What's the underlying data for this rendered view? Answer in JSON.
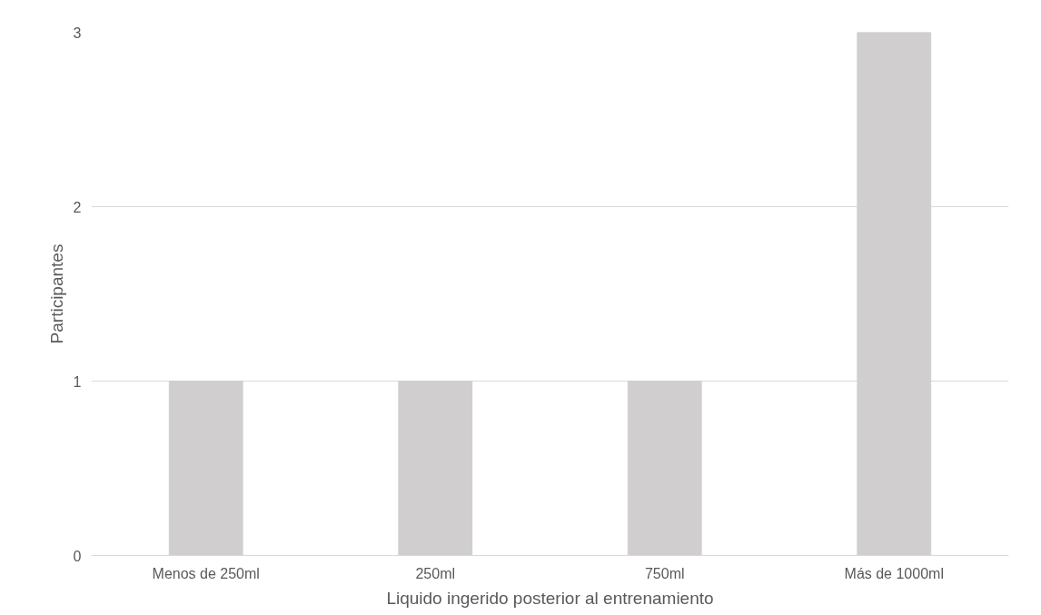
{
  "chart_data": {
    "type": "bar",
    "xlabel": "Liquido ingerido posterior al entrenamiento",
    "ylabel": "Participantes",
    "categories": [
      "Menos de 250ml",
      "250ml",
      "750ml",
      "Más de 1000ml"
    ],
    "values": [
      1,
      1,
      1,
      3
    ],
    "color": "#d0cece",
    "ylim": [
      0,
      3
    ],
    "yticks": [
      0,
      1,
      2,
      3
    ],
    "grid": "y"
  }
}
